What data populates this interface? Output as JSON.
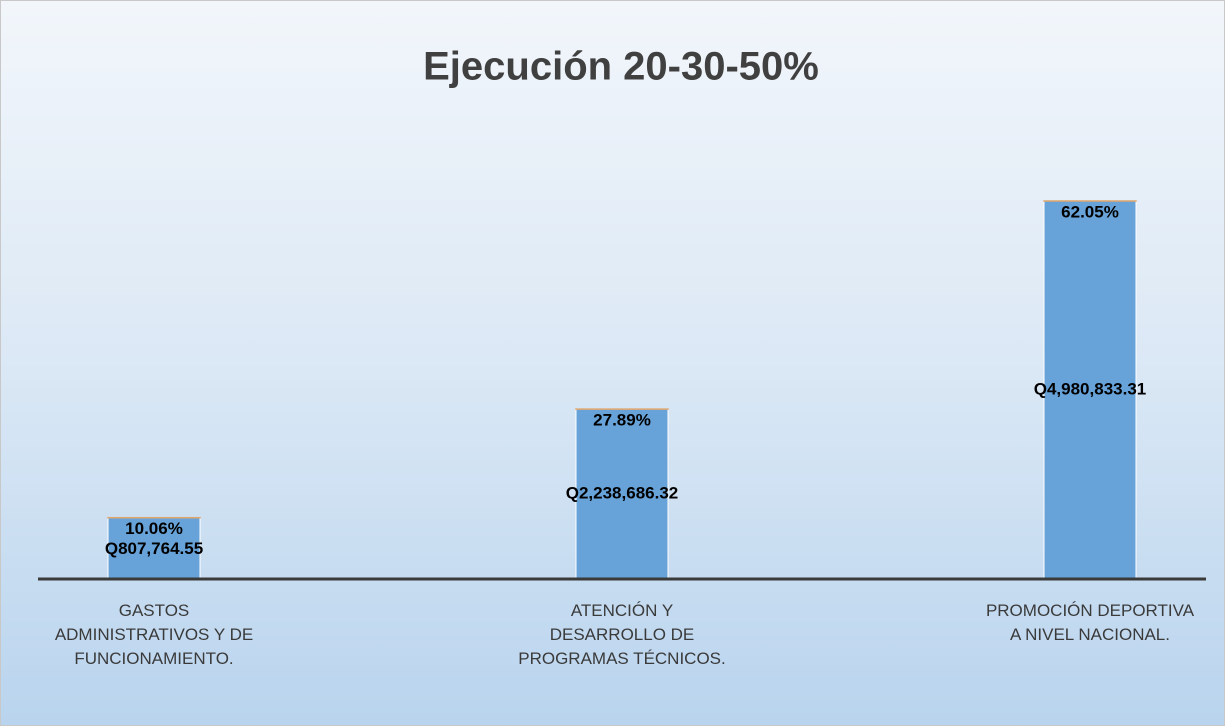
{
  "chart_data": {
    "type": "bar",
    "stacked": true,
    "title": "Ejecución 20-30-50%",
    "categories": [
      "GASTOS ADMINISTRATIVOS Y DE FUNCIONAMIENTO.",
      "ATENCIÓN Y DESARROLLO DE PROGRAMAS TÉCNICOS.",
      "PROMOCIÓN DEPORTIVA A NIVEL NACIONAL."
    ],
    "series": [
      {
        "color": "#67a3d9",
        "values": [
          807764.55,
          2238686.32,
          4980833.31
        ],
        "value_labels": [
          "Q807,764.55",
          "Q2,238,686.32",
          "Q4,980,833.31"
        ]
      },
      {
        "color": "#e0a66b",
        "values": [
          10.06,
          27.89,
          62.05
        ],
        "value_labels": [
          "10.06%",
          "27.89%",
          "62.05%"
        ]
      }
    ]
  }
}
